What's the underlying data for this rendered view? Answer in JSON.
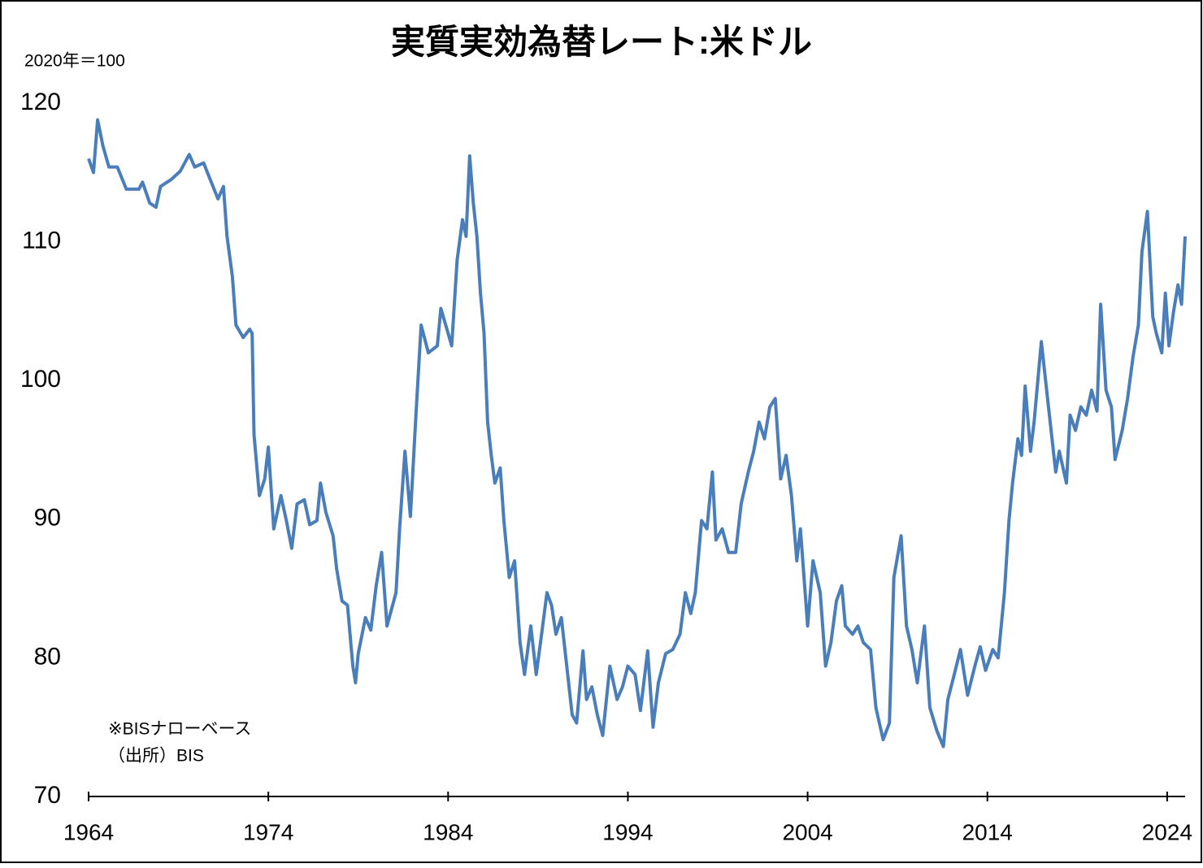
{
  "chart_data": {
    "type": "line",
    "title": "実質実効為替レート:米ドル",
    "y_axis_label": "2020年＝100",
    "annotations": [
      "※BISナローベース",
      "（出所）BIS"
    ],
    "color": "#4a7ebb",
    "x": [
      1964.0,
      1964.27,
      1964.5,
      1964.8,
      1965.13,
      1965.6,
      1966.1,
      1966.8,
      1967.0,
      1967.4,
      1967.75,
      1968.0,
      1968.6,
      1969.1,
      1969.6,
      1969.9,
      1970.4,
      1970.7,
      1971.2,
      1971.5,
      1971.7,
      1972.0,
      1972.2,
      1972.6,
      1972.96,
      1973.1,
      1973.2,
      1973.5,
      1973.8,
      1974.0,
      1974.3,
      1974.7,
      1975.0,
      1975.3,
      1975.6,
      1976.0,
      1976.3,
      1976.7,
      1976.9,
      1977.2,
      1977.6,
      1977.8,
      1978.1,
      1978.4,
      1978.7,
      1978.85,
      1979.0,
      1979.4,
      1979.7,
      1980.0,
      1980.3,
      1980.6,
      1981.1,
      1981.3,
      1981.6,
      1981.9,
      1982.2,
      1982.5,
      1982.9,
      1983.4,
      1983.6,
      1984.0,
      1984.2,
      1984.5,
      1984.8,
      1985.0,
      1985.2,
      1985.4,
      1985.6,
      1985.8,
      1986.0,
      1986.2,
      1986.4,
      1986.6,
      1986.9,
      1987.1,
      1987.4,
      1987.7,
      1988.0,
      1988.25,
      1988.6,
      1988.9,
      1989.2,
      1989.5,
      1989.75,
      1990.0,
      1990.3,
      1990.65,
      1990.9,
      1991.15,
      1991.5,
      1991.7,
      1992.0,
      1992.3,
      1992.6,
      1993.0,
      1993.4,
      1993.7,
      1994.0,
      1994.4,
      1994.7,
      1995.1,
      1995.4,
      1995.7,
      1996.1,
      1996.5,
      1996.9,
      1997.2,
      1997.5,
      1997.75,
      1998.1,
      1998.4,
      1998.7,
      1998.9,
      1999.25,
      1999.6,
      2000.0,
      2000.3,
      2000.7,
      2001.0,
      2001.3,
      2001.6,
      2001.9,
      2002.2,
      2002.5,
      2002.8,
      2003.1,
      2003.4,
      2003.6,
      2004.0,
      2004.3,
      2004.7,
      2005.0,
      2005.3,
      2005.6,
      2005.9,
      2006.1,
      2006.5,
      2006.8,
      2007.1,
      2007.5,
      2007.8,
      2008.2,
      2008.55,
      2008.8,
      2009.2,
      2009.5,
      2009.8,
      2010.1,
      2010.5,
      2010.8,
      2011.2,
      2011.55,
      2011.8,
      2012.1,
      2012.5,
      2012.9,
      2013.3,
      2013.6,
      2013.9,
      2014.3,
      2014.6,
      2014.95,
      2015.2,
      2015.4,
      2015.7,
      2015.9,
      2016.1,
      2016.4,
      2016.6,
      2017.0,
      2017.4,
      2017.8,
      2018.0,
      2018.4,
      2018.6,
      2018.9,
      2019.2,
      2019.5,
      2019.8,
      2020.1,
      2020.3,
      2020.6,
      2020.9,
      2021.1,
      2021.5,
      2021.8,
      2022.1,
      2022.4,
      2022.6,
      2022.9,
      2023.2,
      2023.4,
      2023.7,
      2023.9,
      2024.1,
      2024.35,
      2024.6,
      2024.8,
      2025.0
    ],
    "values": [
      116.0,
      115.0,
      118.8,
      116.9,
      115.4,
      115.4,
      113.8,
      113.8,
      114.3,
      112.8,
      112.5,
      114.0,
      114.5,
      115.1,
      116.3,
      115.4,
      115.7,
      114.7,
      113.1,
      114.0,
      110.4,
      107.5,
      104.0,
      103.1,
      103.7,
      103.4,
      96.1,
      91.7,
      92.9,
      95.2,
      89.3,
      91.7,
      89.9,
      87.9,
      91.1,
      91.4,
      89.6,
      89.9,
      92.6,
      90.5,
      88.8,
      86.4,
      84.1,
      83.8,
      79.4,
      78.2,
      80.3,
      82.9,
      82.0,
      85.2,
      87.6,
      82.3,
      84.7,
      89.3,
      94.9,
      90.2,
      97.3,
      104.0,
      102.0,
      102.5,
      105.2,
      103.4,
      102.5,
      108.7,
      111.6,
      110.4,
      116.2,
      112.8,
      110.4,
      106.3,
      103.4,
      97.0,
      94.6,
      92.6,
      93.7,
      89.9,
      85.8,
      87.0,
      81.1,
      78.8,
      82.3,
      78.8,
      81.7,
      84.7,
      83.8,
      81.7,
      82.9,
      78.8,
      75.9,
      75.3,
      80.5,
      77.0,
      77.9,
      75.9,
      74.4,
      79.4,
      77.0,
      77.9,
      79.4,
      78.8,
      76.2,
      80.5,
      75.0,
      78.2,
      80.3,
      80.6,
      81.7,
      84.7,
      83.2,
      84.7,
      89.9,
      89.3,
      93.4,
      88.5,
      89.3,
      87.6,
      87.6,
      91.1,
      93.4,
      94.9,
      97.0,
      95.8,
      98.1,
      98.7,
      92.9,
      94.6,
      91.7,
      87.0,
      89.3,
      82.3,
      87.0,
      84.7,
      79.4,
      81.1,
      84.1,
      85.2,
      82.3,
      81.7,
      82.3,
      81.1,
      80.6,
      76.4,
      74.1,
      75.3,
      85.8,
      88.8,
      82.3,
      80.6,
      78.2,
      82.3,
      76.4,
      74.7,
      73.6,
      77.0,
      78.5,
      80.6,
      77.3,
      79.4,
      80.8,
      79.1,
      80.6,
      80.0,
      84.7,
      89.9,
      92.6,
      95.8,
      94.6,
      99.6,
      94.9,
      97.0,
      102.8,
      98.1,
      93.4,
      94.9,
      92.6,
      97.5,
      96.4,
      98.1,
      97.5,
      99.3,
      97.8,
      105.5,
      99.3,
      98.1,
      94.3,
      96.4,
      98.7,
      101.7,
      104.0,
      109.3,
      112.2,
      104.6,
      103.4,
      102.0,
      106.3,
      102.5,
      104.9,
      106.9,
      105.5,
      110.4
    ],
    "xlim": [
      1964,
      2025
    ],
    "xticks": [
      1964,
      1974,
      1984,
      1994,
      2004,
      2014,
      2024
    ],
    "ylim": [
      70,
      120
    ],
    "yticks": [
      70,
      80,
      90,
      100,
      110,
      120
    ],
    "grid": false
  }
}
